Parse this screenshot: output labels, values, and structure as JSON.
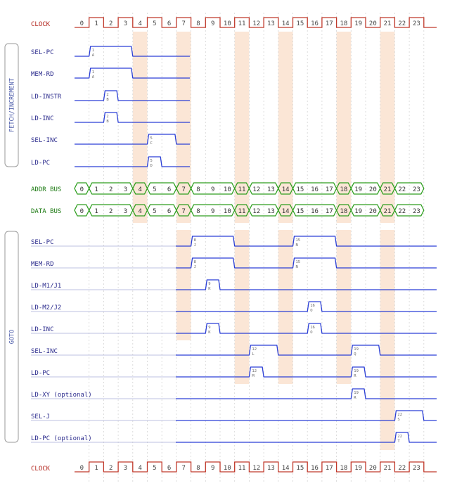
{
  "clock": {
    "label": "CLOCK",
    "ticks": [
      "0",
      "1",
      "2",
      "3",
      "4",
      "5",
      "6",
      "7",
      "8",
      "9",
      "10",
      "11",
      "12",
      "13",
      "14",
      "15",
      "16",
      "17",
      "18",
      "19",
      "20",
      "21",
      "22",
      "23"
    ]
  },
  "highlight_columns": [
    4,
    7,
    11,
    14,
    18,
    21
  ],
  "groups": [
    {
      "label": "FETCH/INCREMENT",
      "signals": [
        {
          "label": "SEL-PC",
          "pulses": [
            {
              "start": 1,
              "end": 3,
              "step": "1",
              "code": "A"
            }
          ]
        },
        {
          "label": "MEM-RD",
          "pulses": [
            {
              "start": 1,
              "end": 3,
              "step": "1",
              "code": "A"
            }
          ]
        },
        {
          "label": "LD-INSTR",
          "pulses": [
            {
              "start": 2,
              "end": 2,
              "step": "2",
              "code": "B"
            }
          ]
        },
        {
          "label": "LD-INC",
          "pulses": [
            {
              "start": 2,
              "end": 2,
              "step": "2",
              "code": "B"
            }
          ]
        },
        {
          "label": "SEL-INC",
          "pulses": [
            {
              "start": 5,
              "end": 6,
              "step": "5",
              "code": "C"
            }
          ]
        },
        {
          "label": "LD-PC",
          "pulses": [
            {
              "start": 5,
              "end": 5,
              "step": "5",
              "code": "D"
            }
          ]
        }
      ]
    },
    {
      "label": "GOTO",
      "signals": [
        {
          "label": "SEL-PC",
          "pulses": [
            {
              "start": 8,
              "end": 10,
              "step": "8",
              "code": "J"
            },
            {
              "start": 15,
              "end": 17,
              "step": "15",
              "code": "N"
            }
          ]
        },
        {
          "label": "MEM-RD",
          "pulses": [
            {
              "start": 8,
              "end": 10,
              "step": "8",
              "code": "J"
            },
            {
              "start": 15,
              "end": 17,
              "step": "15",
              "code": "N"
            }
          ]
        },
        {
          "label": "LD-M1/J1",
          "pulses": [
            {
              "start": 9,
              "end": 9,
              "step": "9",
              "code": "K"
            }
          ]
        },
        {
          "label": "LD-M2/J2",
          "pulses": [
            {
              "start": 16,
              "end": 16,
              "step": "16",
              "code": "O"
            }
          ]
        },
        {
          "label": "LD-INC",
          "pulses": [
            {
              "start": 9,
              "end": 9,
              "step": "9",
              "code": "K"
            },
            {
              "start": 16,
              "end": 16,
              "step": "16",
              "code": "O"
            }
          ]
        },
        {
          "label": "SEL-INC",
          "pulses": [
            {
              "start": 12,
              "end": 13,
              "step": "12",
              "code": "L"
            },
            {
              "start": 19,
              "end": 20,
              "step": "19",
              "code": "Q"
            }
          ]
        },
        {
          "label": "LD-PC",
          "pulses": [
            {
              "start": 12,
              "end": 12,
              "step": "12",
              "code": "M"
            },
            {
              "start": 19,
              "end": 19,
              "step": "19",
              "code": "R"
            }
          ]
        },
        {
          "label": "LD-XY (optional)",
          "pulses": [
            {
              "start": 19,
              "end": 19,
              "step": "19",
              "code": "R"
            }
          ]
        },
        {
          "label": "SEL-J",
          "pulses": [
            {
              "start": 22,
              "end": 23,
              "step": "22",
              "code": "S"
            }
          ]
        },
        {
          "label": "LD-PC (optional)",
          "pulses": [
            {
              "start": 22,
              "end": 22,
              "step": "22",
              "code": "T"
            }
          ]
        }
      ]
    }
  ],
  "buses": [
    {
      "label": "ADDR BUS",
      "segments": [
        [
          0,
          0
        ],
        [
          1,
          3
        ],
        [
          4,
          4
        ],
        [
          5,
          6
        ],
        [
          7,
          7
        ],
        [
          8,
          10
        ],
        [
          11,
          11
        ],
        [
          12,
          13
        ],
        [
          14,
          14
        ],
        [
          15,
          17
        ],
        [
          18,
          18
        ],
        [
          19,
          20
        ],
        [
          21,
          21
        ],
        [
          22,
          23
        ]
      ]
    },
    {
      "label": "DATA BUS",
      "segments": [
        [
          0,
          0
        ],
        [
          1,
          3
        ],
        [
          4,
          4
        ],
        [
          5,
          6
        ],
        [
          7,
          7
        ],
        [
          8,
          10
        ],
        [
          11,
          11
        ],
        [
          12,
          13
        ],
        [
          14,
          14
        ],
        [
          15,
          17
        ],
        [
          18,
          18
        ],
        [
          19,
          20
        ],
        [
          21,
          21
        ],
        [
          22,
          23
        ]
      ]
    }
  ],
  "colors": {
    "clock": "#c0392b",
    "signal": "#2b3fd6",
    "signal_label": "#2a2a8c",
    "bus": "#2e9e1f",
    "bus_label": "#1c7a12",
    "highlight": "#fbe6d6",
    "grid": "#d4d4d4",
    "baseline": "#a9aed8",
    "group_box": "#9a9a9a"
  }
}
